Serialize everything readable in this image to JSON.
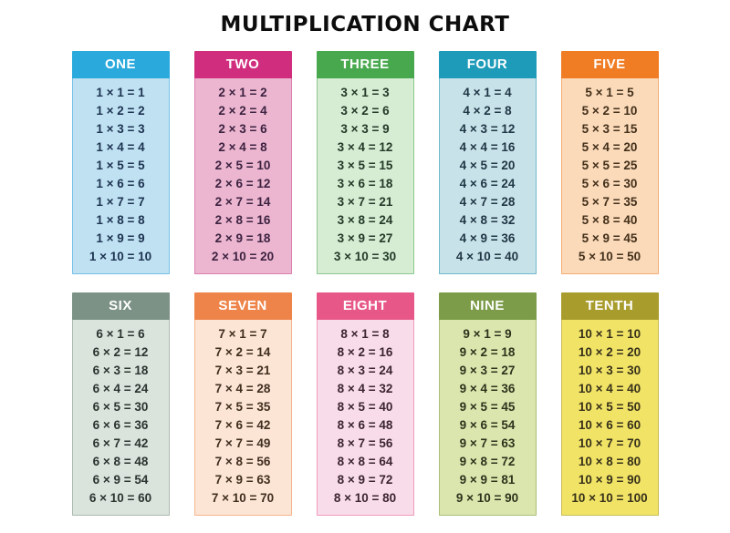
{
  "title": "MULTIPLICATION CHART",
  "cards": [
    {
      "label": "ONE",
      "header_color": "#2aa9dc",
      "body_color": "#bfe1f2",
      "border_color": "#74c0e6",
      "text_color": "#1d3350",
      "facts": [
        "1 × 1 = 1",
        "1 × 2 = 2",
        "1 × 3 = 3",
        "1 × 4 = 4",
        "1 × 5 = 5",
        "1 × 6 = 6",
        "1 × 7 = 7",
        "1 × 8 = 8",
        "1 × 9 = 9",
        "1 × 10 = 10"
      ]
    },
    {
      "label": "TWO",
      "header_color": "#d12d7e",
      "body_color": "#ecb6d0",
      "border_color": "#dc7fad",
      "text_color": "#3c2240",
      "facts": [
        "2 × 1 = 2",
        "2 × 2 = 4",
        "2 × 3 = 6",
        "2 × 4 = 8",
        "2 × 5 = 10",
        "2 × 6 = 12",
        "2 × 7 = 14",
        "2 × 8 = 16",
        "2 × 9 = 18",
        "2 × 10 = 20"
      ]
    },
    {
      "label": "THREE",
      "header_color": "#48a84d",
      "body_color": "#d6ecd3",
      "border_color": "#8cc88e",
      "text_color": "#233a28",
      "facts": [
        "3 × 1 = 3",
        "3 × 2 = 6",
        "3 × 3 = 9",
        "3 × 4 = 12",
        "3 × 5 = 15",
        "3 × 6 = 18",
        "3 × 7 = 21",
        "3 × 8 = 24",
        "3 × 9 = 27",
        "3 × 10 = 30"
      ]
    },
    {
      "label": "FOUR",
      "header_color": "#1e9bb9",
      "body_color": "#c8e2e9",
      "border_color": "#6fb9cc",
      "text_color": "#1f3644",
      "facts": [
        "4 × 1 = 4",
        "4 × 2 = 8",
        "4 × 3 = 12",
        "4 × 4 = 16",
        "4 × 5 = 20",
        "4 × 6 = 24",
        "4 × 7 = 28",
        "4 × 8 = 32",
        "4 × 9 = 36",
        "4 × 10 = 40"
      ]
    },
    {
      "label": "FIVE",
      "header_color": "#f07c23",
      "body_color": "#fbdaba",
      "border_color": "#f5ad74",
      "text_color": "#43301a",
      "facts": [
        "5 × 1 = 5",
        "5 × 2 = 10",
        "5 × 3 = 15",
        "5 × 4 = 20",
        "5 × 5 = 25",
        "5 × 6 = 30",
        "5 × 7 = 35",
        "5 × 8 = 40",
        "5 × 9 = 45",
        "5 × 10 = 50"
      ]
    },
    {
      "label": "SIX",
      "header_color": "#7d9287",
      "body_color": "#dbe3dd",
      "border_color": "#a9baae",
      "text_color": "#2b3430",
      "facts": [
        "6 × 1 = 6",
        "6 × 2 = 12",
        "6 × 3 = 18",
        "6 × 4 = 24",
        "6 × 5 = 30",
        "6 × 6 = 36",
        "6 × 7 = 42",
        "6 × 8 = 48",
        "6 × 9 = 54",
        "6 × 10 = 60"
      ]
    },
    {
      "label": "SEVEN",
      "header_color": "#ee8449",
      "body_color": "#fce5d5",
      "border_color": "#f4b48d",
      "text_color": "#402e1e",
      "facts": [
        "7 × 1 = 7",
        "7 × 2 = 14",
        "7 × 3 = 21",
        "7 × 4 = 28",
        "7 × 5 = 35",
        "7 × 6 = 42",
        "7 × 7 = 49",
        "7 × 8 = 56",
        "7 × 9 = 63",
        "7 × 10 = 70"
      ]
    },
    {
      "label": "EIGHT",
      "header_color": "#e75888",
      "body_color": "#f9dcea",
      "border_color": "#f09bbb",
      "text_color": "#3b2530",
      "facts": [
        "8 × 1 = 8",
        "8 × 2 = 16",
        "8 × 3 = 24",
        "8 × 4 = 32",
        "8 × 5 = 40",
        "8 × 6 = 48",
        "8 × 7 = 56",
        "8 × 8 = 64",
        "8 × 9 = 72",
        "8 × 10 = 80"
      ]
    },
    {
      "label": "NINE",
      "header_color": "#7c9c49",
      "body_color": "#dbe6ae",
      "border_color": "#aabf78",
      "text_color": "#2c331c",
      "facts": [
        "9 × 1 = 9",
        "9 × 2 = 18",
        "9 × 3 = 27",
        "9 × 4 = 36",
        "9 × 5 = 45",
        "9 × 6 = 54",
        "9 × 7 = 63",
        "9 × 8 = 72",
        "9 × 9 = 81",
        "9 × 10 = 90"
      ]
    },
    {
      "label": "TENTH",
      "header_color": "#a89c2d",
      "body_color": "#f1e366",
      "border_color": "#c9bd55",
      "text_color": "#37311a",
      "facts": [
        "10 × 1 = 10",
        "10 × 2 = 20",
        "10 × 3 = 30",
        "10 × 4 = 40",
        "10 × 5 = 50",
        "10 × 6 = 60",
        "10 × 7 = 70",
        "10 × 8 = 80",
        "10 × 9 = 90",
        "10 × 10 = 100"
      ]
    }
  ],
  "chart_data": {
    "type": "table",
    "title": "MULTIPLICATION CHART",
    "tables": [
      {
        "label": "ONE",
        "multiplier": 1,
        "multiplicands": [
          1,
          2,
          3,
          4,
          5,
          6,
          7,
          8,
          9,
          10
        ],
        "products": [
          1,
          2,
          3,
          4,
          5,
          6,
          7,
          8,
          9,
          10
        ]
      },
      {
        "label": "TWO",
        "multiplier": 2,
        "multiplicands": [
          1,
          2,
          3,
          4,
          5,
          6,
          7,
          8,
          9,
          10
        ],
        "products": [
          2,
          4,
          6,
          8,
          10,
          12,
          14,
          16,
          18,
          20
        ]
      },
      {
        "label": "THREE",
        "multiplier": 3,
        "multiplicands": [
          1,
          2,
          3,
          4,
          5,
          6,
          7,
          8,
          9,
          10
        ],
        "products": [
          3,
          6,
          9,
          12,
          15,
          18,
          21,
          24,
          27,
          30
        ]
      },
      {
        "label": "FOUR",
        "multiplier": 4,
        "multiplicands": [
          1,
          2,
          3,
          4,
          5,
          6,
          7,
          8,
          9,
          10
        ],
        "products": [
          4,
          8,
          12,
          16,
          20,
          24,
          28,
          32,
          36,
          40
        ]
      },
      {
        "label": "FIVE",
        "multiplier": 5,
        "multiplicands": [
          1,
          2,
          3,
          4,
          5,
          6,
          7,
          8,
          9,
          10
        ],
        "products": [
          5,
          10,
          15,
          20,
          25,
          30,
          35,
          40,
          45,
          50
        ]
      },
      {
        "label": "SIX",
        "multiplier": 6,
        "multiplicands": [
          1,
          2,
          3,
          4,
          5,
          6,
          7,
          8,
          9,
          10
        ],
        "products": [
          6,
          12,
          18,
          24,
          30,
          36,
          42,
          48,
          54,
          60
        ]
      },
      {
        "label": "SEVEN",
        "multiplier": 7,
        "multiplicands": [
          1,
          2,
          3,
          4,
          5,
          6,
          7,
          8,
          9,
          10
        ],
        "products": [
          7,
          14,
          21,
          28,
          35,
          42,
          49,
          56,
          63,
          70
        ]
      },
      {
        "label": "EIGHT",
        "multiplier": 8,
        "multiplicands": [
          1,
          2,
          3,
          4,
          5,
          6,
          7,
          8,
          9,
          10
        ],
        "products": [
          8,
          16,
          24,
          32,
          40,
          48,
          56,
          64,
          72,
          80
        ]
      },
      {
        "label": "NINE",
        "multiplier": 9,
        "multiplicands": [
          1,
          2,
          3,
          4,
          5,
          6,
          7,
          8,
          9,
          10
        ],
        "products": [
          9,
          18,
          27,
          36,
          45,
          54,
          63,
          72,
          81,
          90
        ]
      },
      {
        "label": "TENTH",
        "multiplier": 10,
        "multiplicands": [
          1,
          2,
          3,
          4,
          5,
          6,
          7,
          8,
          9,
          10
        ],
        "products": [
          10,
          20,
          30,
          40,
          50,
          60,
          70,
          80,
          90,
          100
        ]
      }
    ],
    "layout": {
      "columns": 5,
      "rows": 2
    }
  }
}
